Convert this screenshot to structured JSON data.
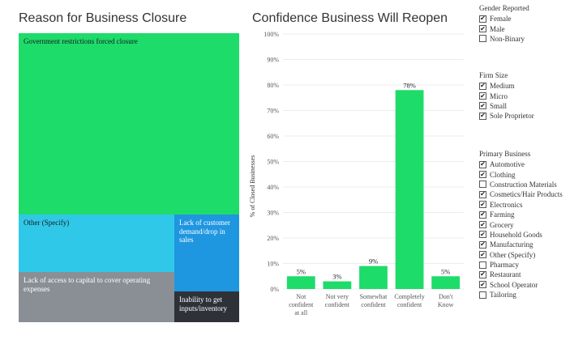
{
  "treemap": {
    "title": "Reason for Business Closure",
    "tiles": [
      {
        "label": "Government restrictions forced closure",
        "color": "#1edc6a",
        "text_color": "dark"
      },
      {
        "label": "Other (Specify)",
        "color": "#30c8e8",
        "text_color": "dark"
      },
      {
        "label": "Lack of customer demand/drop in sales",
        "color": "#1f96e0",
        "text_color": "light"
      },
      {
        "label": "Lack of access to capital to cover operating expenses",
        "color": "#8a8f95",
        "text_color": "light"
      },
      {
        "label": "Inability to get inputs/inventory",
        "color": "#2e3238",
        "text_color": "light"
      }
    ]
  },
  "chart_data": {
    "type": "bar",
    "title": "Confidence Business Will Reopen",
    "ylabel": "% of Closed Businesses",
    "categories": [
      [
        "Not",
        "confident",
        "at all"
      ],
      [
        "Not very",
        "confident"
      ],
      [
        "Somewhat",
        "confident"
      ],
      [
        "Completely",
        "confident"
      ],
      [
        "Don't",
        "Know"
      ]
    ],
    "values": [
      5,
      3,
      9,
      78,
      5
    ],
    "data_labels": [
      "5%",
      "3%",
      "9%",
      "78%",
      "5%"
    ],
    "yticks": [
      "0%",
      "10%",
      "20%",
      "30%",
      "40%",
      "50%",
      "60%",
      "70%",
      "80%",
      "90%",
      "100%"
    ],
    "ylim": [
      0,
      100
    ],
    "bar_color": "#1edc6a",
    "grid": true
  },
  "filters": [
    {
      "title": "Gender Reported",
      "items": [
        {
          "label": "Female",
          "checked": true
        },
        {
          "label": "Male",
          "checked": true
        },
        {
          "label": "Non-Binary",
          "checked": false
        }
      ]
    },
    {
      "title": "Firm Size",
      "items": [
        {
          "label": "Medium",
          "checked": true
        },
        {
          "label": "Micro",
          "checked": true
        },
        {
          "label": "Small",
          "checked": true
        },
        {
          "label": "Sole Proprietor",
          "checked": true
        }
      ]
    },
    {
      "title": "Primary Business",
      "items": [
        {
          "label": "Automotive",
          "checked": true
        },
        {
          "label": "Clothing",
          "checked": true
        },
        {
          "label": "Construction Materials",
          "checked": false
        },
        {
          "label": "Cosmetics/Hair Products",
          "checked": true
        },
        {
          "label": "Electronics",
          "checked": true
        },
        {
          "label": "Farming",
          "checked": true
        },
        {
          "label": "Grocery",
          "checked": true
        },
        {
          "label": "Household Goods",
          "checked": true
        },
        {
          "label": "Manufacturing",
          "checked": true
        },
        {
          "label": "Other (Specify)",
          "checked": true
        },
        {
          "label": "Pharmacy",
          "checked": false
        },
        {
          "label": "Restaurant",
          "checked": true
        },
        {
          "label": "School Operator",
          "checked": true
        },
        {
          "label": "Tailoring",
          "checked": false
        }
      ]
    }
  ],
  "checkmark_glyph": "✔"
}
